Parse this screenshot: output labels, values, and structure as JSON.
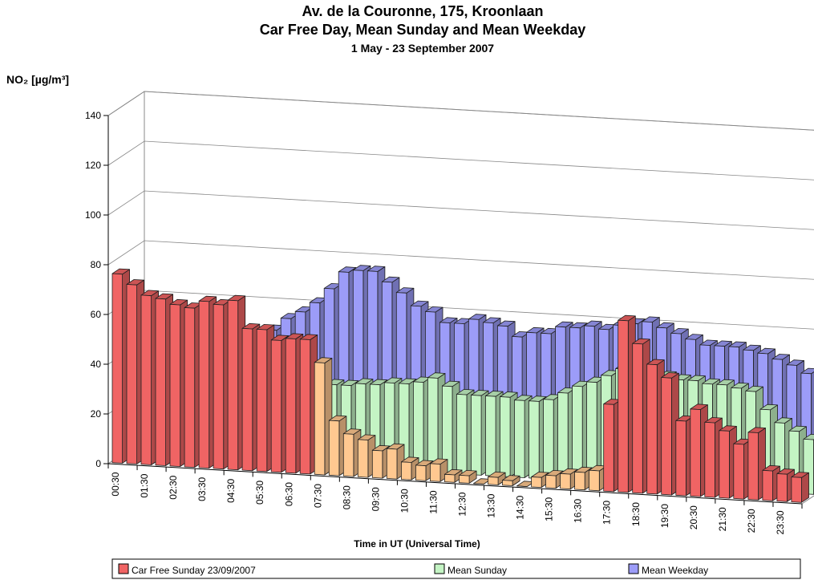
{
  "chart_data": {
    "type": "bar3d",
    "title": "Av. de la Couronne, 175, Kroonlaan",
    "subtitle": "Car Free Day, Mean Sunday and Mean Weekday",
    "subtitle2": "1 May - 23 September 2007",
    "y_axis_label": "NO₂  [µg/m³]",
    "x_axis_label": "Time in UT (Universal Time)",
    "categories": [
      "00:30",
      null,
      "01:30",
      null,
      "02:30",
      null,
      "03:30",
      null,
      "04:30",
      null,
      "05:30",
      null,
      "06:30",
      null,
      "07:30",
      null,
      "08:30",
      null,
      "09:30",
      null,
      "10:30",
      null,
      "11:30",
      null,
      "12:30",
      null,
      "13:30",
      null,
      "14:30",
      null,
      "15:30",
      null,
      "16:30",
      null,
      "17:30",
      null,
      "18:30",
      null,
      "19:30",
      null,
      "20:30",
      null,
      "21:30",
      null,
      "22:30",
      null,
      "23:30",
      null
    ],
    "ylim": [
      0,
      140
    ],
    "yticks": [
      0,
      20,
      40,
      60,
      80,
      100,
      120,
      140
    ],
    "grid": true,
    "series": [
      {
        "name": "Car Free Sunday 23/09/2007",
        "color": "#f06464",
        "values": [
          76,
          72,
          68,
          67,
          65,
          64,
          67,
          66,
          68,
          57,
          57,
          53,
          54,
          54,
          45,
          22,
          17,
          15,
          11,
          12,
          7,
          6,
          7,
          3,
          3,
          0,
          3,
          2,
          0,
          4,
          5,
          6,
          7,
          8,
          35,
          69,
          60,
          52,
          47,
          30,
          35,
          30,
          27,
          22,
          27,
          12,
          11,
          10
        ],
        "colors": [
          "#f06464",
          "#f06464",
          "#f06464",
          "#f06464",
          "#f06464",
          "#f06464",
          "#f06464",
          "#f06464",
          "#f06464",
          "#f06464",
          "#f06464",
          "#f06464",
          "#f06464",
          "#f06464",
          "#ffc890",
          "#ffc890",
          "#ffc890",
          "#ffc890",
          "#ffc890",
          "#ffc890",
          "#ffc890",
          "#ffc890",
          "#ffc890",
          "#ffc890",
          "#ffc890",
          "#ffc890",
          "#ffc890",
          "#ffc890",
          "#ffc890",
          "#ffc890",
          "#ffc890",
          "#ffc890",
          "#ffc890",
          "#ffc890",
          "#f06464",
          "#f06464",
          "#f06464",
          "#f06464",
          "#f06464",
          "#f06464",
          "#f06464",
          "#f06464",
          "#f06464",
          "#f06464",
          "#f06464",
          "#f06464",
          "#f06464",
          "#f06464"
        ]
      },
      {
        "name": "Mean Sunday",
        "color": "#c4f4c4",
        "values": [
          45,
          42,
          40,
          38,
          36,
          34,
          33,
          32,
          32,
          32,
          32,
          32,
          32,
          33,
          33,
          33,
          34,
          34,
          35,
          35,
          36,
          38,
          35,
          32,
          32,
          32,
          32,
          31,
          31,
          32,
          35,
          38,
          40,
          43,
          46,
          45,
          44,
          44,
          43,
          43,
          42,
          42,
          41,
          40,
          33,
          28,
          25,
          22
        ]
      },
      {
        "name": "Mean Weekday",
        "color": "#9c9cf8",
        "values": [
          50,
          46,
          43,
          40,
          38,
          37,
          38,
          40,
          45,
          50,
          55,
          58,
          62,
          68,
          75,
          76,
          76,
          72,
          68,
          63,
          61,
          57,
          57,
          59,
          58,
          57,
          53,
          55,
          55,
          58,
          58,
          59,
          58,
          60,
          61,
          62,
          60,
          58,
          56,
          54,
          54,
          54,
          53,
          52,
          50,
          48,
          45,
          42
        ]
      }
    ]
  }
}
